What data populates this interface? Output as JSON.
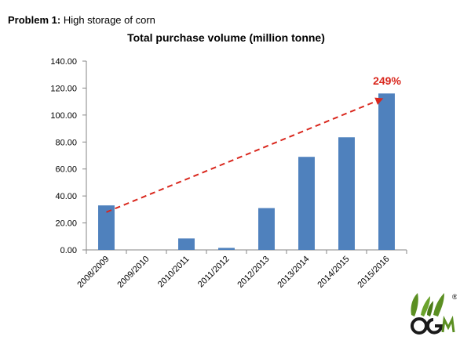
{
  "heading": {
    "label": "Problem 1",
    "text": "High storage of corn"
  },
  "chart_data": {
    "type": "bar",
    "title": "Total purchase volume (million tonne)",
    "xlabel": "",
    "ylabel": "",
    "categories": [
      "2008/2009",
      "2009/2010",
      "2010/2011",
      "2011/2012",
      "2012/2013",
      "2013/2014",
      "2014/2015",
      "2015/2016"
    ],
    "values": [
      33,
      0,
      8.5,
      1.5,
      31,
      69,
      83.5,
      116
    ],
    "ylim": [
      0,
      140
    ],
    "yticks": [
      "0.00",
      "20.00",
      "40.00",
      "60.00",
      "80.00",
      "100.00",
      "120.00",
      "140.00"
    ],
    "grid": false,
    "legend": "none",
    "bar_color": "#4f81bd",
    "annotation": {
      "text": "249%",
      "color": "#d9261c",
      "trend_from": {
        "category": "2008/2009",
        "value": 28
      },
      "trend_to": {
        "category": "2015/2016",
        "value": 112
      }
    }
  },
  "logo": {
    "icon": "corn-company-logo-icon",
    "mark": "®",
    "colors": [
      "#5b8f22",
      "#1a1a1a"
    ]
  }
}
